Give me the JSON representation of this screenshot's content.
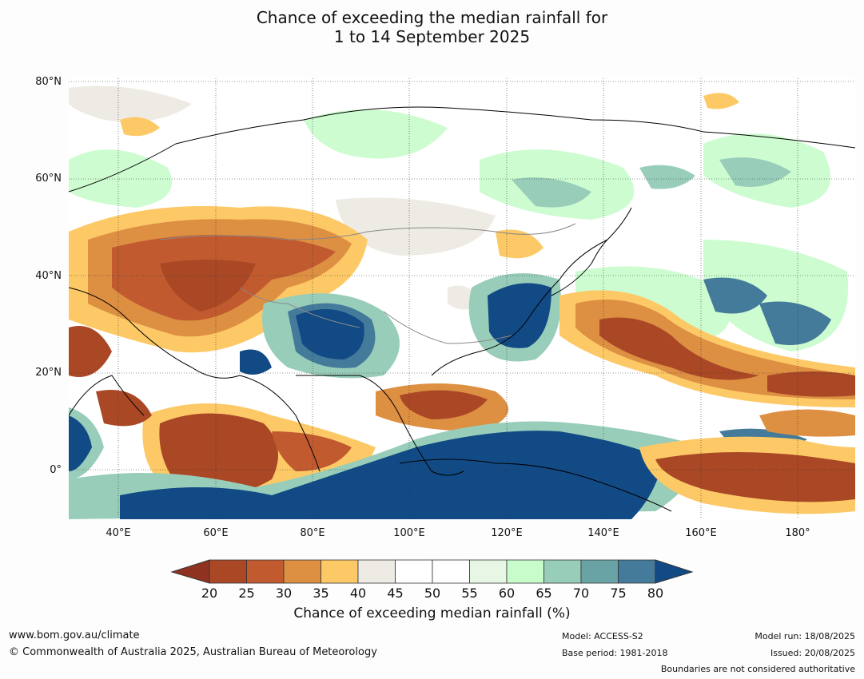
{
  "title": {
    "line1": "Chance of exceeding the median rainfall for",
    "line2": "1 to 14 September 2025"
  },
  "map": {
    "lat_labels": [
      "80°N",
      "60°N",
      "40°N",
      "20°N",
      "0°"
    ],
    "lon_labels": [
      "40°E",
      "60°E",
      "80°E",
      "100°E",
      "120°E",
      "140°E",
      "160°E",
      "180°"
    ],
    "extent": {
      "lon": [
        30,
        191
      ],
      "lat": [
        -10,
        80
      ]
    }
  },
  "colorbar": {
    "title": "Chance of exceeding median rainfall (%)",
    "ticks": [
      "20",
      "25",
      "30",
      "35",
      "40",
      "45",
      "50",
      "55",
      "60",
      "65",
      "70",
      "75",
      "80"
    ],
    "colors": [
      "#aa4826",
      "#c15b2f",
      "#dd8f42",
      "#fdc966",
      "#eeebe4",
      "#ffffff",
      "#ffffff",
      "#e8f6e6",
      "#c8fccb",
      "#98cdb9",
      "#6aa3a6",
      "#447a9a"
    ],
    "under_color": "#8f3320",
    "over_color": "#124a86"
  },
  "footer": {
    "url": "www.bom.gov.au/climate",
    "copyright": "© Commonwealth of Australia 2025, Australian Bureau of Meteorology",
    "model": "Model: ACCESS-S2",
    "base_period": "Base period: 1981-2018",
    "model_run": "Model run: 18/08/2025",
    "issued": "Issued: 20/08/2025",
    "disclaimer": "Boundaries are not considered authoritative"
  }
}
